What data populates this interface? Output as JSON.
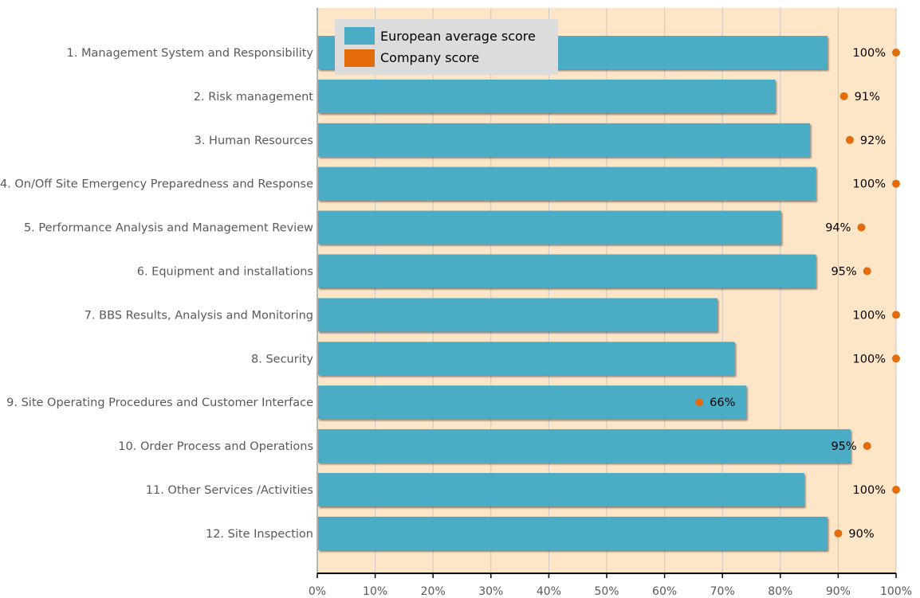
{
  "chart_data": {
    "type": "bar",
    "orientation": "horizontal",
    "categories": [
      "1. Management System and Responsibility",
      "2. Risk management",
      "3. Human Resources",
      "4. On/Off Site Emergency Preparedness and Response",
      "5. Performance Analysis and Management Review",
      "6. Equipment and installations",
      "7. BBS Results, Analysis and Monitoring",
      "8. Security",
      "9. Site Operating Procedures and Customer Interface",
      "10. Order Process and Operations",
      "11. Other Services /Activities",
      "12. Site Inspection"
    ],
    "series": [
      {
        "name": "European average score",
        "type": "bar",
        "color": "#4bacc6",
        "values": [
          88,
          79,
          85,
          86,
          80,
          86,
          69,
          72,
          74,
          92,
          84,
          88
        ]
      },
      {
        "name": "Company score",
        "type": "dot",
        "color": "#e36c0a",
        "values": [
          100,
          91,
          92,
          100,
          94,
          95,
          100,
          100,
          66,
          95,
          100,
          90
        ],
        "labels": [
          "100%",
          "91%",
          "92%",
          "100%",
          "94%",
          "95%",
          "100%",
          "100%",
          "66%",
          "95%",
          "100%",
          "90%"
        ]
      }
    ],
    "xlim": [
      0,
      100
    ],
    "x_ticks": [
      "0%",
      "10%",
      "20%",
      "30%",
      "40%",
      "50%",
      "60%",
      "70%",
      "80%",
      "90%",
      "100%"
    ],
    "grid": true,
    "legend_position": "top-left",
    "plot_background": "#fde5c8"
  }
}
